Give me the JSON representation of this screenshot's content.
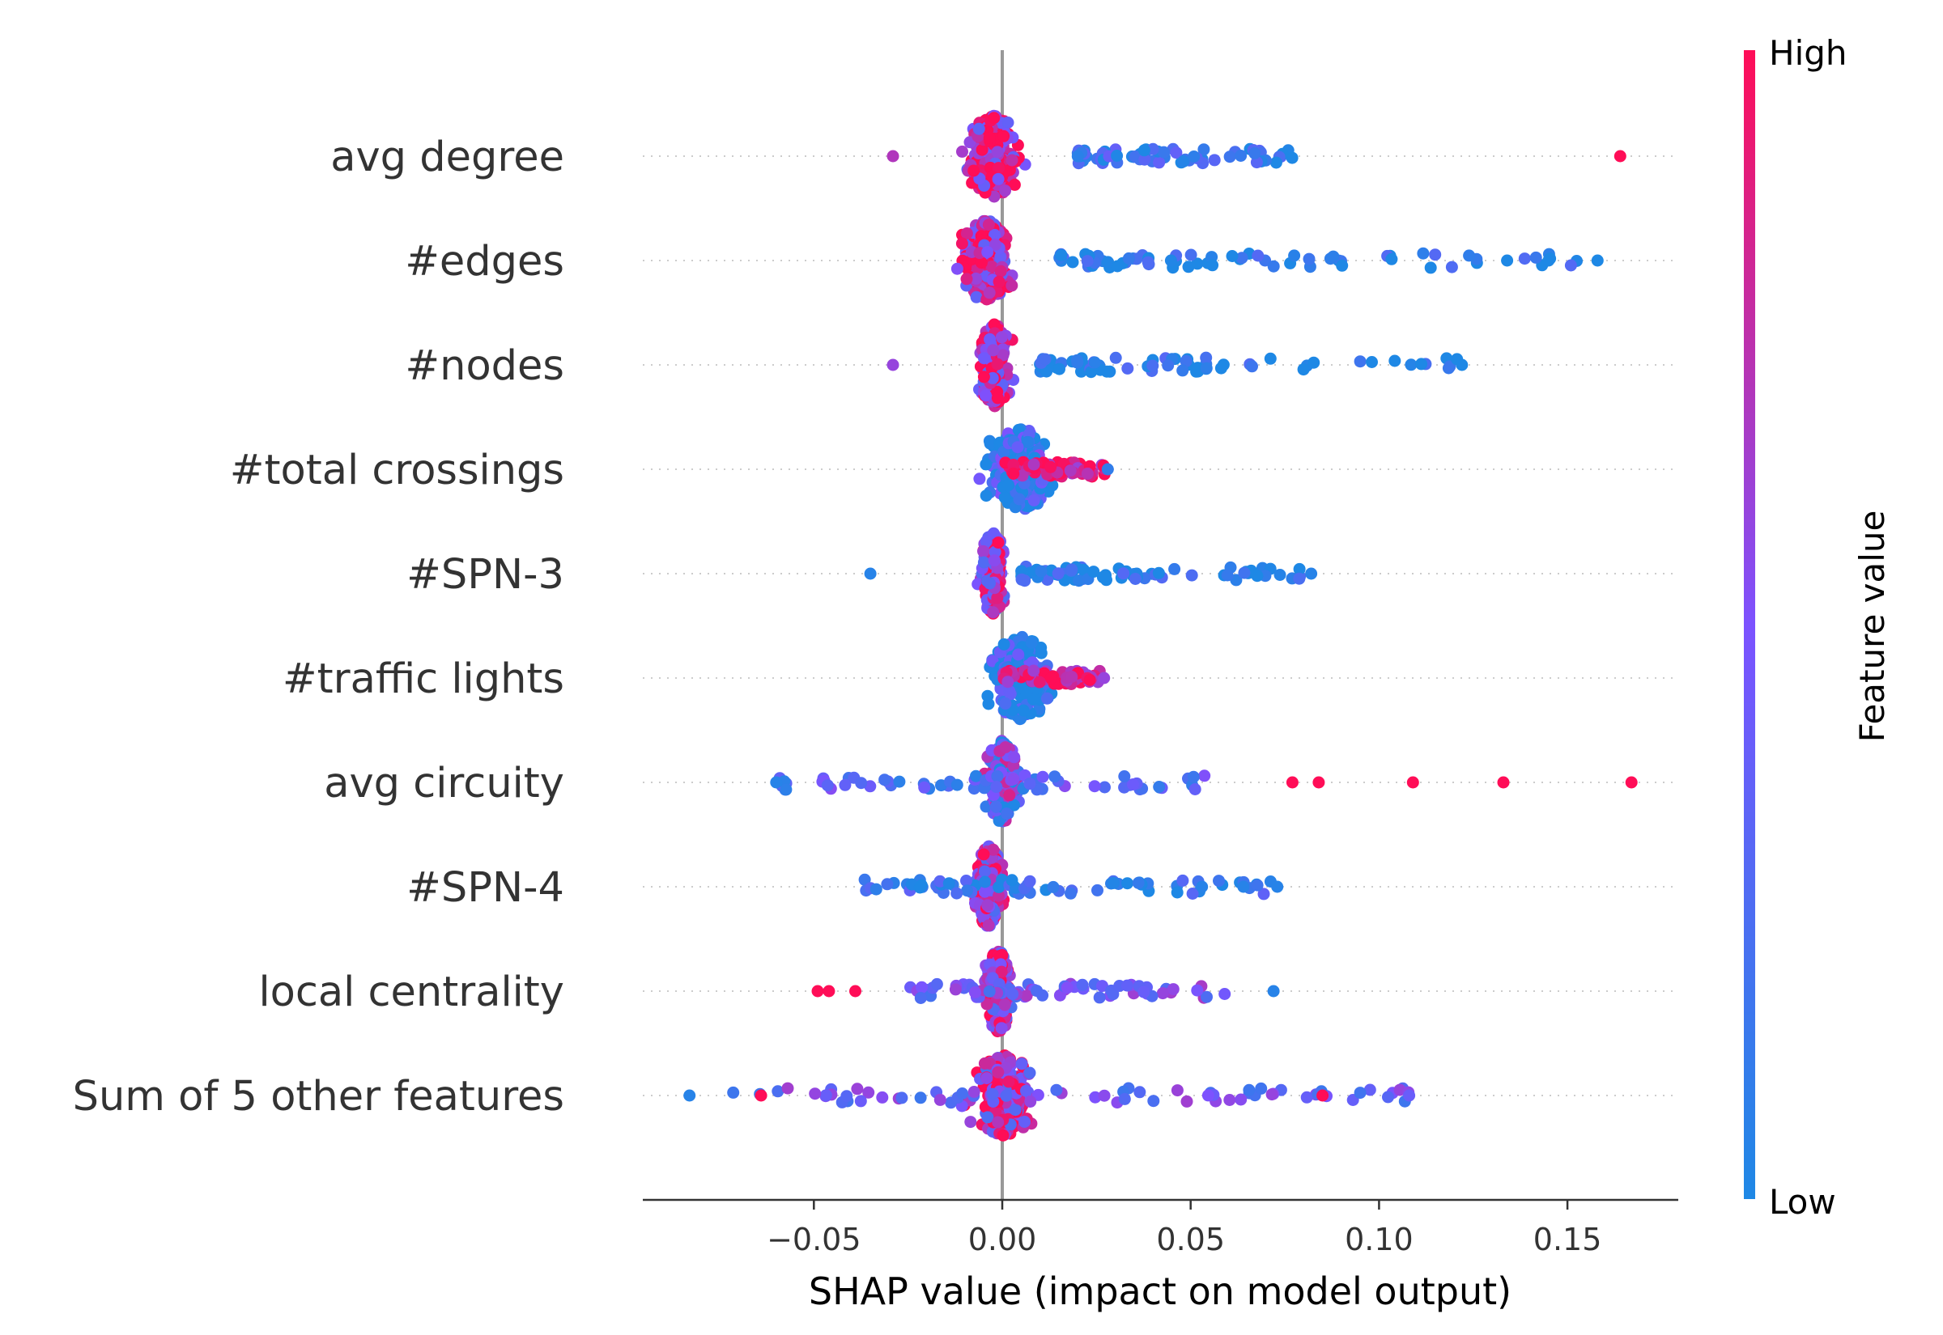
{
  "chart_data": {
    "type": "scatter",
    "subtype": "shap-beeswarm",
    "title": "",
    "xlabel": "SHAP value (impact on model output)",
    "ylabel": "",
    "xlim": [
      -0.095,
      0.18
    ],
    "x_ticks": [
      -0.05,
      0.0,
      0.05,
      0.1,
      0.15
    ],
    "x_tick_labels": [
      "−0.05",
      "0.00",
      "0.05",
      "0.10",
      "0.15"
    ],
    "zero_line": 0.0,
    "grid": false,
    "colorbar": {
      "title": "Feature value",
      "high_label": "High",
      "low_label": "Low",
      "high_color": "#ff0d57",
      "low_color": "#1e88e5"
    },
    "features": [
      {
        "name": "avg degree",
        "core": [
          -0.02,
          0.015
        ],
        "tail": [
          0.02,
          0.08
        ],
        "outliers": [
          [
            -0.029,
            0.7
          ],
          [
            0.164,
            1.0
          ]
        ],
        "tail_color": 0.15,
        "core_color": 0.8
      },
      {
        "name": "#edges",
        "core": [
          -0.021,
          0.012
        ],
        "tail": [
          0.015,
          0.158
        ],
        "outliers": [
          [
            0.134,
            0.0
          ],
          [
            0.145,
            0.0
          ],
          [
            0.158,
            0.0
          ]
        ],
        "tail_color": 0.05,
        "core_color": 0.75
      },
      {
        "name": "#nodes",
        "core": [
          -0.012,
          0.008
        ],
        "tail": [
          0.01,
          0.122
        ],
        "outliers": [
          [
            -0.029,
            0.6
          ],
          [
            0.122,
            0.0
          ]
        ],
        "tail_color": 0.05,
        "core_color": 0.75
      },
      {
        "name": "#total crossings",
        "core": [
          -0.017,
          0.027
        ],
        "tail": [
          0.0,
          0.028
        ],
        "outliers": [
          [
            0.028,
            0.1
          ]
        ],
        "tail_color": 0.85,
        "core_color": 0.1
      },
      {
        "name": "#SPN-3",
        "core": [
          -0.01,
          0.005
        ],
        "tail": [
          0.005,
          0.082
        ],
        "outliers": [
          [
            -0.035,
            0.05
          ],
          [
            0.082,
            0.05
          ]
        ],
        "tail_color": 0.05,
        "core_color": 0.7
      },
      {
        "name": "#traffic lights",
        "core": [
          -0.016,
          0.026
        ],
        "tail": [
          0.0,
          0.027
        ],
        "outliers": [
          [
            0.027,
            0.6
          ]
        ],
        "tail_color": 0.85,
        "core_color": 0.1
      },
      {
        "name": "avg circuity",
        "core": [
          -0.01,
          0.01
        ],
        "tail": [
          -0.06,
          0.058
        ],
        "outliers": [
          [
            -0.06,
            0.05
          ],
          [
            0.077,
            1.0
          ],
          [
            0.084,
            1.0
          ],
          [
            0.109,
            1.0
          ],
          [
            0.133,
            1.0
          ],
          [
            0.167,
            1.0
          ]
        ],
        "tail_color": 0.3,
        "core_color": 0.4
      },
      {
        "name": "#SPN-4",
        "core": [
          -0.012,
          0.005
        ],
        "tail": [
          -0.038,
          0.074
        ],
        "outliers": [
          [
            0.053,
            0.05
          ],
          [
            0.064,
            0.05
          ],
          [
            0.073,
            0.05
          ]
        ],
        "tail_color": 0.1,
        "core_color": 0.7
      },
      {
        "name": "local centrality",
        "core": [
          -0.01,
          0.008
        ],
        "tail": [
          -0.025,
          0.06
        ],
        "outliers": [
          [
            -0.049,
            1.0
          ],
          [
            -0.046,
            1.0
          ],
          [
            -0.039,
            1.0
          ],
          [
            0.072,
            0.05
          ]
        ],
        "tail_color": 0.45,
        "core_color": 0.65
      },
      {
        "name": "Sum of 5 other features",
        "core": [
          -0.02,
          0.02
        ],
        "tail": [
          -0.08,
          0.108
        ],
        "outliers": [
          [
            -0.083,
            0.05
          ],
          [
            -0.064,
            1.0
          ],
          [
            0.085,
            1.0
          ],
          [
            0.108,
            0.4
          ]
        ],
        "tail_color": 0.4,
        "core_color": 0.7
      }
    ]
  }
}
